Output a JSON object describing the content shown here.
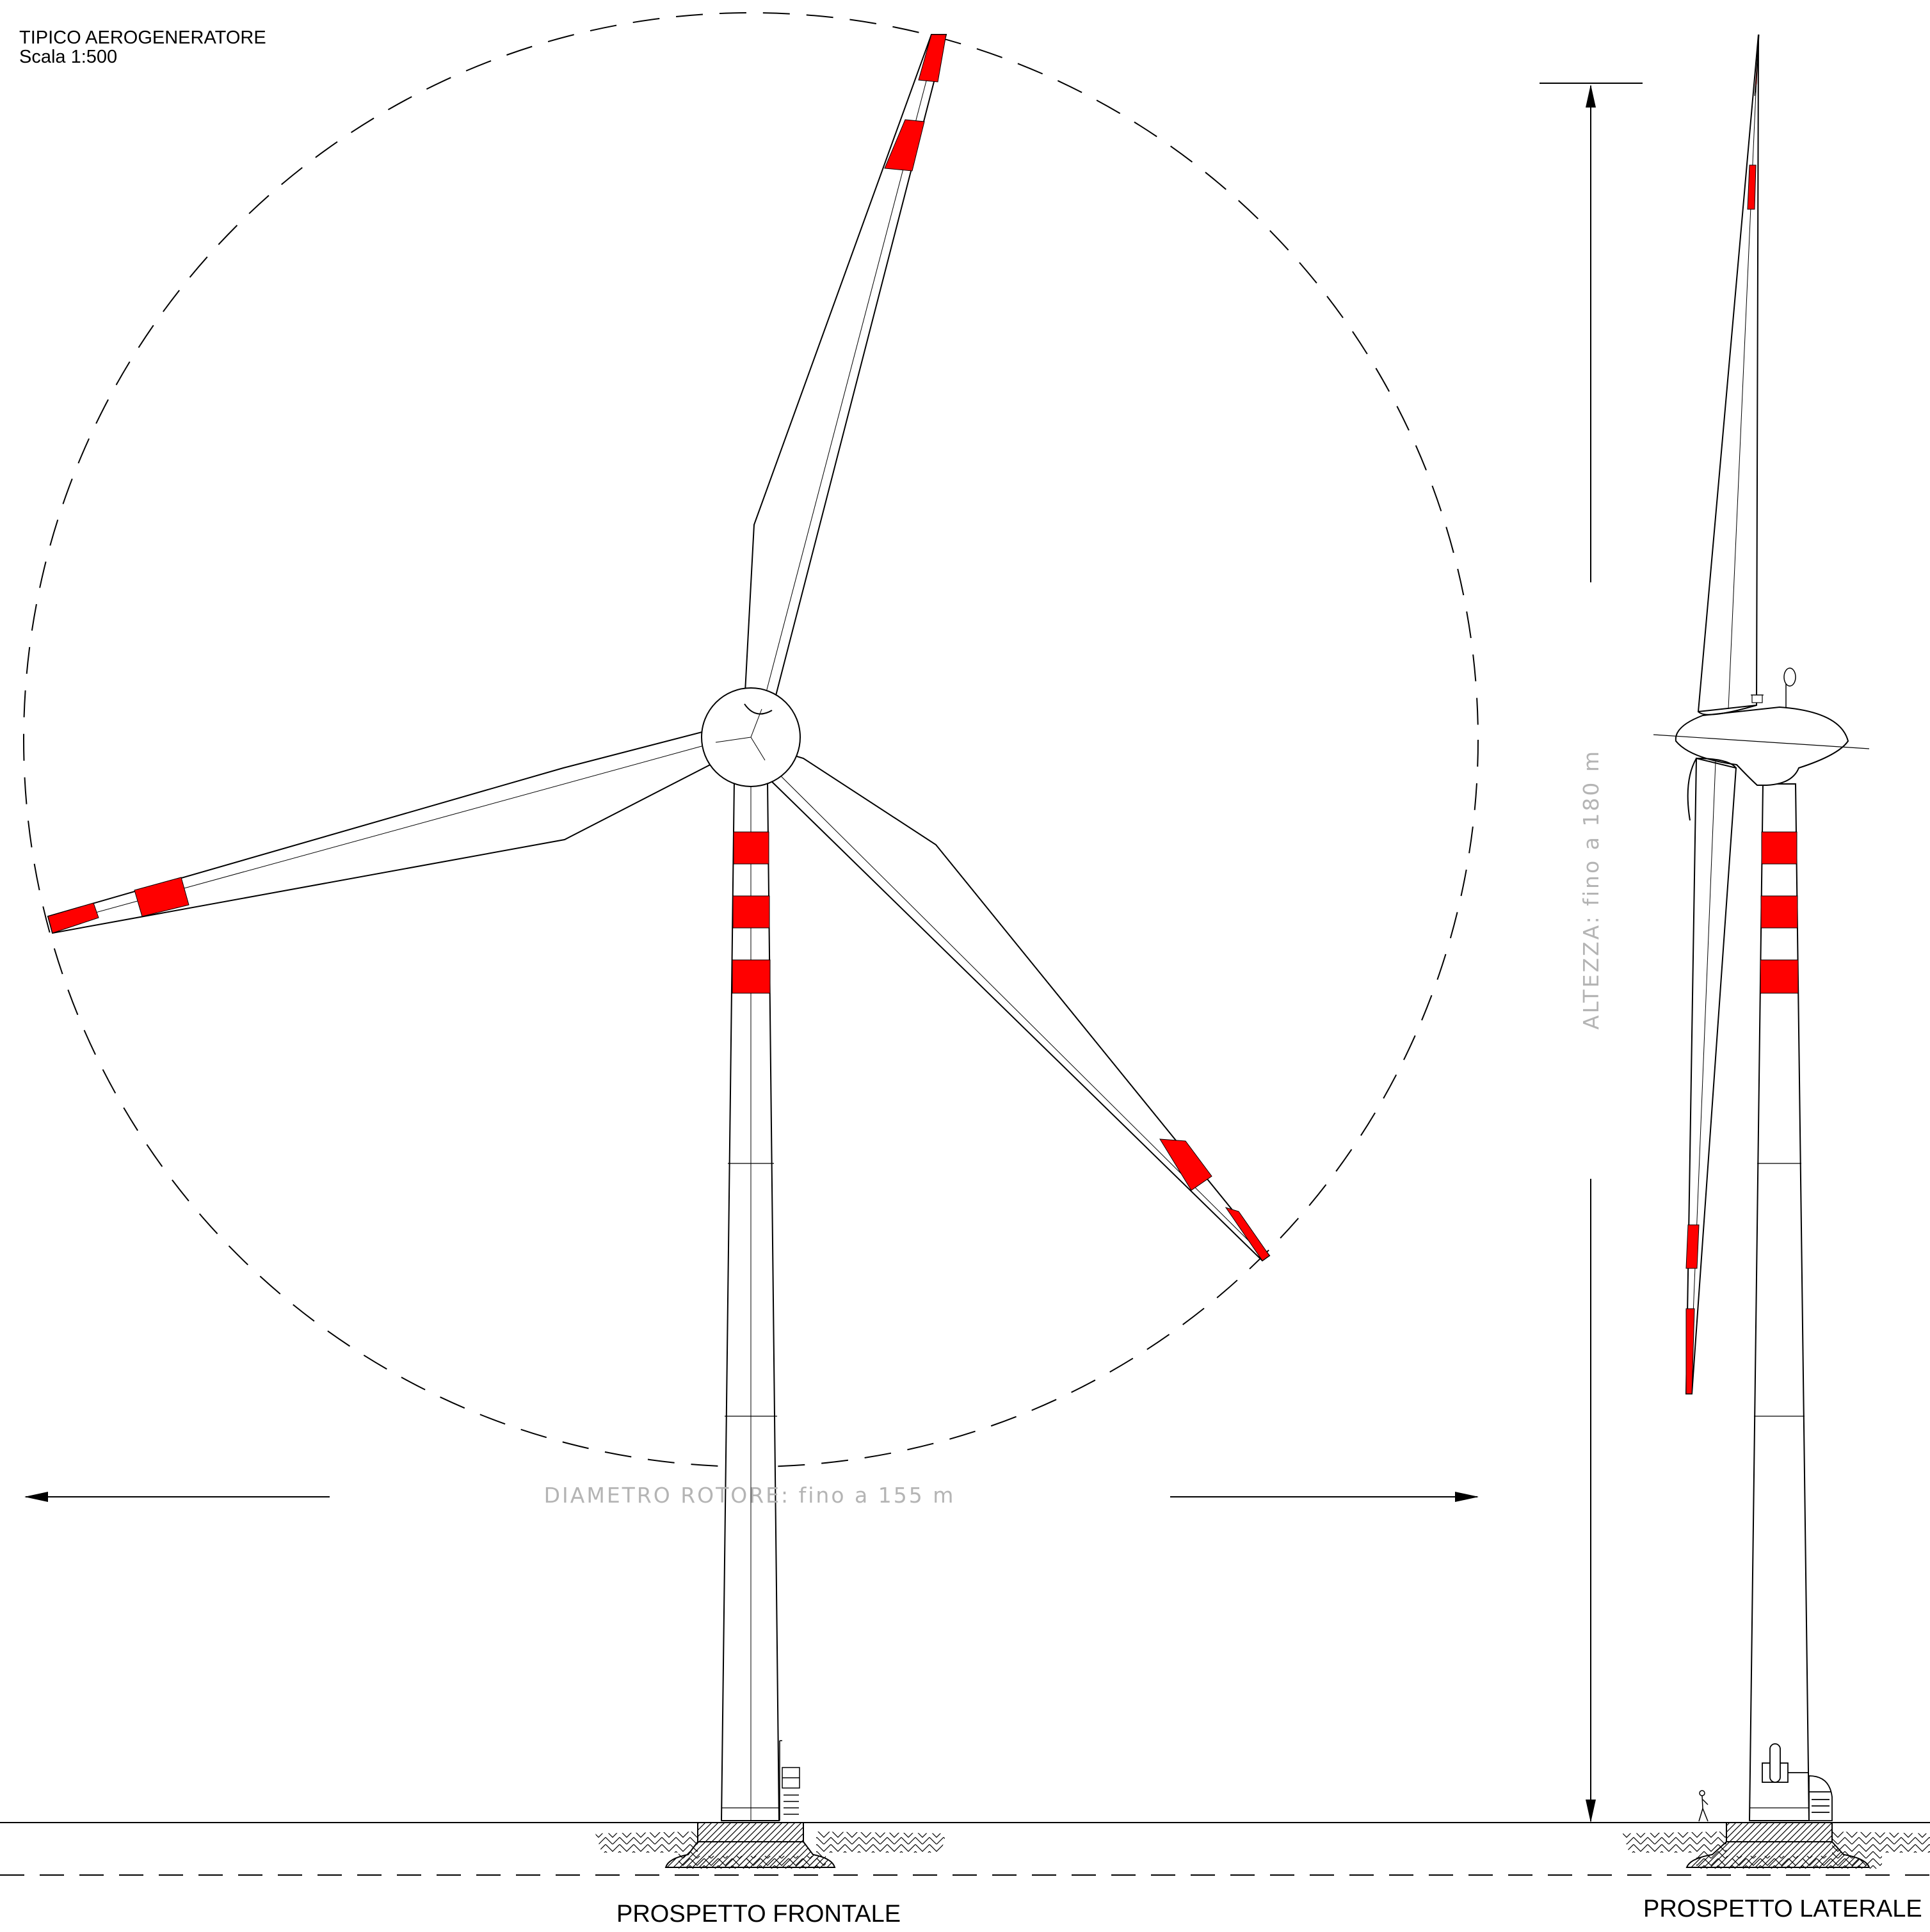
{
  "header": {
    "title": "TIPICO AEROGENERATORE",
    "scale": "Scala 1:500"
  },
  "dimensions": {
    "rotor_diameter": "DIAMETRO ROTORE: fino a 155 m",
    "height": "ALTEZZA: fino a 180 m"
  },
  "views": {
    "front": "PROSPETTO FRONTALE",
    "side": "PROSPETTO LATERALE"
  },
  "colors": {
    "marking_red": "#ff0000",
    "line": "#000000",
    "dimension_text": "#b4b4b4"
  }
}
